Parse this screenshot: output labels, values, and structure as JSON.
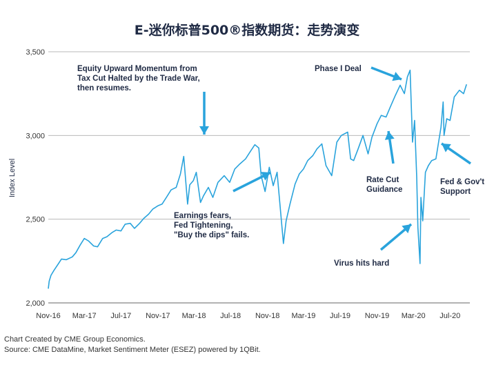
{
  "chart_data": {
    "type": "line",
    "title": "E-迷你标普500®指数期货：走势演变",
    "ylabel": "Index Level",
    "xlabel": "",
    "ylim": [
      2000,
      3500
    ],
    "yticks": [
      2000,
      2500,
      3000,
      3500
    ],
    "ytick_labels": [
      "2,000",
      "2,500",
      "3,000",
      "3,500"
    ],
    "xticks": [
      "2016-11",
      "2017-03",
      "2017-07",
      "2017-11",
      "2018-03",
      "2018-07",
      "2018-11",
      "2019-03",
      "2019-07",
      "2019-11",
      "2020-03",
      "2020-07"
    ],
    "xtick_labels": [
      "Nov-16",
      "Mar-17",
      "Jul-17",
      "Nov-17",
      "Mar-18",
      "Jul-18",
      "Nov-18",
      "Mar-19",
      "Jul-19",
      "Nov-19",
      "Mar-20",
      "Jul-20"
    ],
    "xlim": [
      "2016-11-01",
      "2020-09-05"
    ],
    "grid": "horizontal",
    "line_color": "#29a3dc",
    "series": [
      {
        "x": [
          "2016-11-01",
          "2016-11-04",
          "2016-11-10",
          "2016-11-20",
          "2016-12-05",
          "2016-12-15",
          "2016-12-31",
          "2017-01-20",
          "2017-02-01",
          "2017-02-15",
          "2017-03-01",
          "2017-03-15",
          "2017-04-01",
          "2017-04-14",
          "2017-05-01",
          "2017-05-15",
          "2017-06-01",
          "2017-06-15",
          "2017-07-01",
          "2017-07-15",
          "2017-08-01",
          "2017-08-15",
          "2017-09-01",
          "2017-09-15",
          "2017-10-01",
          "2017-10-15",
          "2017-11-01",
          "2017-11-15",
          "2017-12-01",
          "2017-12-15",
          "2018-01-01",
          "2018-01-15",
          "2018-01-26",
          "2018-02-08",
          "2018-02-15",
          "2018-02-27",
          "2018-03-09",
          "2018-03-23",
          "2018-04-02",
          "2018-04-18",
          "2018-05-03",
          "2018-05-20",
          "2018-06-10",
          "2018-06-28",
          "2018-07-15",
          "2018-08-01",
          "2018-08-20",
          "2018-09-05",
          "2018-09-20",
          "2018-10-03",
          "2018-10-11",
          "2018-10-24",
          "2018-11-07",
          "2018-11-20",
          "2018-12-03",
          "2018-12-12",
          "2018-12-24",
          "2019-01-02",
          "2019-01-15",
          "2019-02-01",
          "2019-02-15",
          "2019-03-01",
          "2019-03-15",
          "2019-04-01",
          "2019-04-15",
          "2019-05-01",
          "2019-05-15",
          "2019-06-03",
          "2019-06-20",
          "2019-07-05",
          "2019-07-26",
          "2019-08-05",
          "2019-08-15",
          "2019-08-30",
          "2019-09-15",
          "2019-10-02",
          "2019-10-15",
          "2019-11-01",
          "2019-11-15",
          "2019-12-01",
          "2019-12-15",
          "2020-01-01",
          "2020-01-17",
          "2020-01-31",
          "2020-02-10",
          "2020-02-19",
          "2020-02-27",
          "2020-03-05",
          "2020-03-12",
          "2020-03-16",
          "2020-03-23",
          "2020-03-26",
          "2020-04-01",
          "2020-04-10",
          "2020-04-20",
          "2020-05-01",
          "2020-05-15",
          "2020-06-01",
          "2020-06-08",
          "2020-06-11",
          "2020-06-20",
          "2020-07-01",
          "2020-07-15",
          "2020-08-01",
          "2020-08-15",
          "2020-08-25"
        ],
        "values": [
          2085,
          2130,
          2165,
          2195,
          2235,
          2262,
          2258,
          2275,
          2300,
          2345,
          2385,
          2370,
          2340,
          2335,
          2385,
          2395,
          2420,
          2435,
          2430,
          2470,
          2475,
          2445,
          2475,
          2505,
          2530,
          2560,
          2580,
          2590,
          2635,
          2675,
          2690,
          2770,
          2875,
          2590,
          2705,
          2730,
          2780,
          2600,
          2640,
          2690,
          2630,
          2720,
          2760,
          2720,
          2800,
          2830,
          2860,
          2905,
          2945,
          2925,
          2760,
          2665,
          2810,
          2700,
          2780,
          2600,
          2355,
          2490,
          2590,
          2710,
          2770,
          2800,
          2850,
          2880,
          2920,
          2950,
          2820,
          2760,
          2960,
          3000,
          3020,
          2860,
          2850,
          2920,
          3000,
          2890,
          2990,
          3070,
          3120,
          3110,
          3170,
          3240,
          3300,
          3250,
          3350,
          3390,
          2960,
          3090,
          2750,
          2450,
          2235,
          2630,
          2490,
          2780,
          2820,
          2850,
          2860,
          3050,
          3200,
          3000,
          3100,
          3090,
          3230,
          3270,
          3250,
          3305
        ]
      }
    ],
    "annotations": [
      {
        "text": "Equity Upward Momentum from\nTax Cut Halted by the Trade War,\nthen resumes."
      },
      {
        "text": "Earnings fears,\nFed Tightening,\n\"Buy the dips\" fails."
      },
      {
        "text": "Phase I Deal"
      },
      {
        "text": "Rate Cut\nGuidance"
      },
      {
        "text": "Virus hits hard"
      },
      {
        "text": "Fed & Gov't\nSupport"
      }
    ]
  },
  "footer": {
    "credit": "Chart Created by CME Group Economics.",
    "source": "Source:  CME DataMine, Market Sentiment Meter (ESEZ) powered by 1QBit."
  }
}
